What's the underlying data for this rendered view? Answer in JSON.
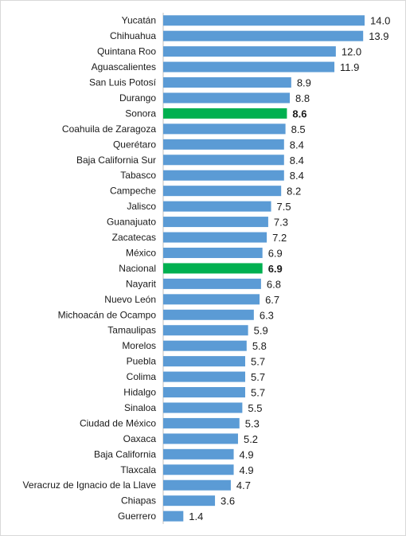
{
  "chart_data": {
    "type": "bar",
    "orientation": "horizontal",
    "title": "",
    "xlabel": "",
    "ylabel": "",
    "xlim": [
      0,
      14
    ],
    "grid": false,
    "legend": "none",
    "colors": {
      "default": "#5b9bd5",
      "highlight": "#00b050"
    },
    "categories": [
      "Yucatán",
      "Chihuahua",
      "Quintana Roo",
      "Aguascalientes",
      "San Luis Potosí",
      "Durango",
      "Sonora",
      "Coahuila de Zaragoza",
      "Querétaro",
      "Baja California Sur",
      "Tabasco",
      "Campeche",
      "Jalisco",
      "Guanajuato",
      "Zacatecas",
      "México",
      "Nacional",
      "Nayarit",
      "Nuevo León",
      "Michoacán de Ocampo",
      "Tamaulipas",
      "Morelos",
      "Puebla",
      "Colima",
      "Hidalgo",
      "Sinaloa",
      "Ciudad de México",
      "Oaxaca",
      "Baja California",
      "Tlaxcala",
      "Veracruz de Ignacio de la Llave",
      "Chiapas",
      "Guerrero"
    ],
    "values": [
      14.0,
      13.9,
      12.0,
      11.9,
      8.9,
      8.8,
      8.6,
      8.5,
      8.4,
      8.4,
      8.4,
      8.2,
      7.5,
      7.3,
      7.2,
      6.9,
      6.9,
      6.8,
      6.7,
      6.3,
      5.9,
      5.8,
      5.7,
      5.7,
      5.7,
      5.5,
      5.3,
      5.2,
      4.9,
      4.9,
      4.7,
      3.6,
      1.4
    ],
    "data_labels": [
      "14.0",
      "13.9",
      "12.0",
      "11.9",
      "8.9",
      "8.8",
      "8.6",
      "8.5",
      "8.4",
      "8.4",
      "8.4",
      "8.2",
      "7.5",
      "7.3",
      "7.2",
      "6.9",
      "6.9",
      "6.8",
      "6.7",
      "6.3",
      "5.9",
      "5.8",
      "5.7",
      "5.7",
      "5.7",
      "5.5",
      "5.3",
      "5.2",
      "4.9",
      "4.9",
      "4.7",
      "3.6",
      "1.4"
    ],
    "highlighted": [
      "Sonora",
      "Nacional"
    ]
  }
}
